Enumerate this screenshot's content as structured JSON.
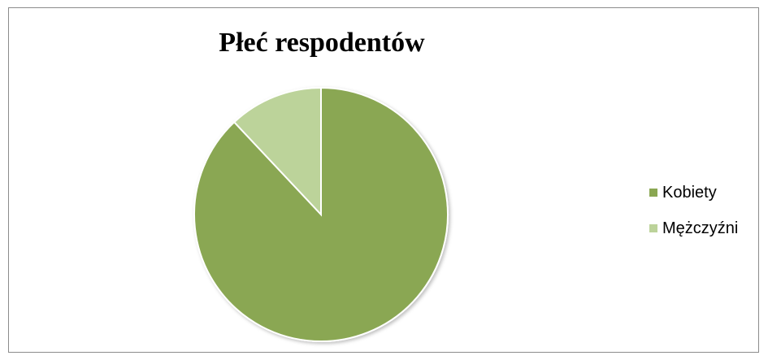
{
  "chart_data": {
    "type": "pie",
    "title": "Płeć respodentów",
    "categories": [
      "Kobiety",
      "Mężczyźni"
    ],
    "values": [
      88,
      12
    ],
    "colors": [
      "#8aa752",
      "#bcd39a"
    ],
    "legend": "right"
  }
}
